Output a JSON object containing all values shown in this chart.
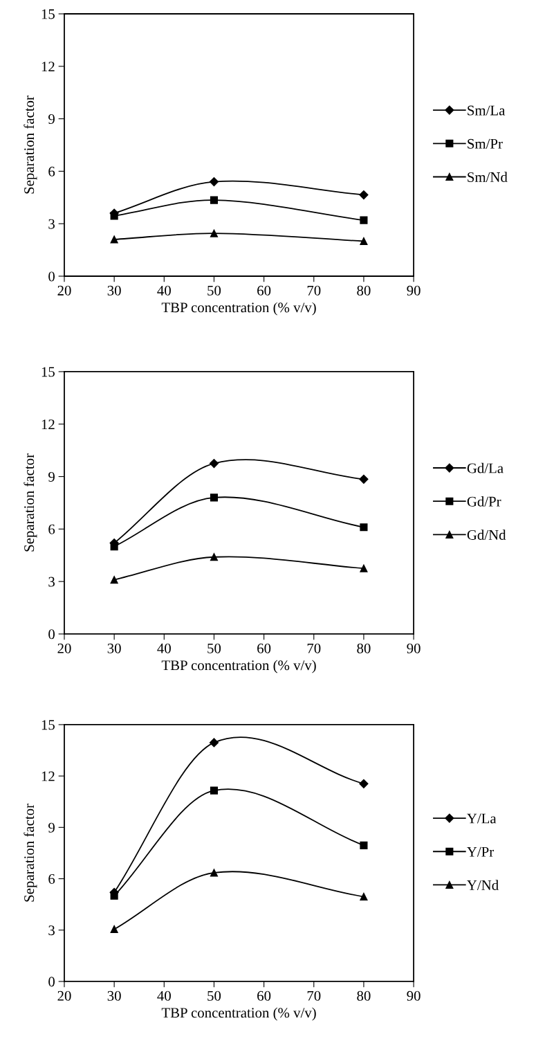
{
  "chart_data": [
    {
      "type": "line",
      "x": [
        30,
        50,
        80
      ],
      "xlabel": "TBP concentration (% v/v)",
      "ylabel": "Separation factor",
      "xlim": [
        20,
        90
      ],
      "xticks": [
        20,
        30,
        40,
        50,
        60,
        70,
        80,
        90
      ],
      "ylim": [
        0,
        15
      ],
      "yticks": [
        0,
        3,
        6,
        9,
        12,
        15
      ],
      "grid": false,
      "legend": "right",
      "series": [
        {
          "name": "Sm/La",
          "color": "#000000",
          "marker": "diamond",
          "values": [
            3.6,
            5.4,
            4.65
          ]
        },
        {
          "name": "Sm/Pr",
          "color": "#000000",
          "marker": "square",
          "values": [
            3.45,
            4.35,
            3.2
          ]
        },
        {
          "name": "Sm/Nd",
          "color": "#000000",
          "marker": "triangle",
          "values": [
            2.1,
            2.45,
            2.0
          ]
        }
      ]
    },
    {
      "type": "line",
      "x": [
        30,
        50,
        80
      ],
      "xlabel": "TBP concentration (% v/v)",
      "ylabel": "Separation factor",
      "xlim": [
        20,
        90
      ],
      "xticks": [
        20,
        30,
        40,
        50,
        60,
        70,
        80,
        90
      ],
      "ylim": [
        0,
        15
      ],
      "yticks": [
        0,
        3,
        6,
        9,
        12,
        15
      ],
      "grid": false,
      "legend": "right",
      "series": [
        {
          "name": "Gd/La",
          "color": "#000000",
          "marker": "diamond",
          "values": [
            5.2,
            9.75,
            8.85
          ]
        },
        {
          "name": "Gd/Pr",
          "color": "#000000",
          "marker": "square",
          "values": [
            5.0,
            7.8,
            6.1
          ]
        },
        {
          "name": "Gd/Nd",
          "color": "#000000",
          "marker": "triangle",
          "values": [
            3.1,
            4.4,
            3.75
          ]
        }
      ]
    },
    {
      "type": "line",
      "x": [
        30,
        50,
        80
      ],
      "xlabel": "TBP concentration (% v/v)",
      "ylabel": "Separation factor",
      "xlim": [
        20,
        90
      ],
      "xticks": [
        20,
        30,
        40,
        50,
        60,
        70,
        80,
        90
      ],
      "ylim": [
        0,
        15
      ],
      "yticks": [
        0,
        3,
        6,
        9,
        12,
        15
      ],
      "grid": false,
      "legend": "right",
      "series": [
        {
          "name": "Y/La",
          "color": "#000000",
          "marker": "diamond",
          "values": [
            5.2,
            13.95,
            11.55
          ]
        },
        {
          "name": "Y/Pr",
          "color": "#000000",
          "marker": "square",
          "values": [
            5.0,
            11.15,
            7.95
          ]
        },
        {
          "name": "Y/Nd",
          "color": "#000000",
          "marker": "triangle",
          "values": [
            3.05,
            6.35,
            4.95
          ]
        }
      ]
    }
  ]
}
